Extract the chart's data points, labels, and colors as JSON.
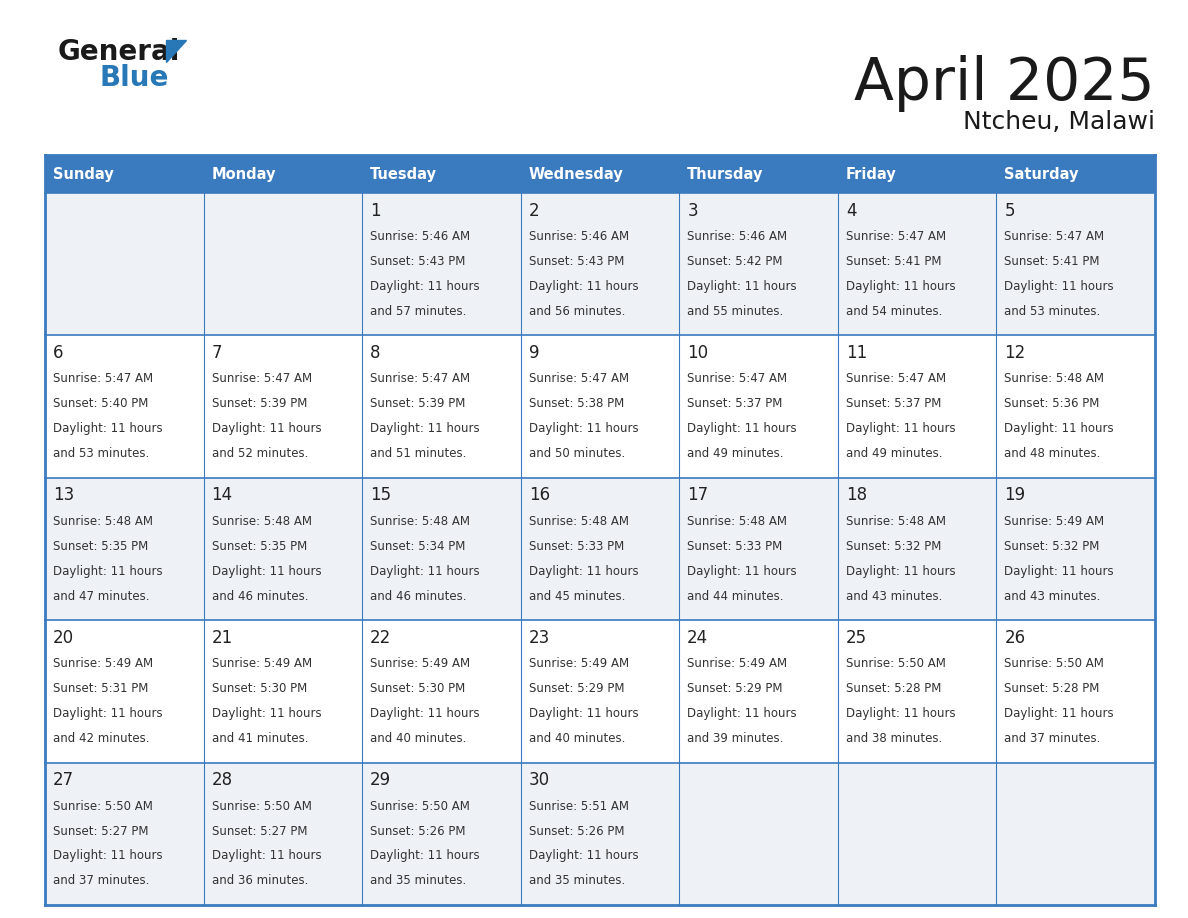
{
  "title": "April 2025",
  "subtitle": "Ntcheu, Malawi",
  "header_bg": "#3a7abf",
  "header_text_color": "#ffffff",
  "cell_bg_odd": "#eef2f7",
  "cell_bg_even": "#ffffff",
  "grid_line_color": "#3a7abf",
  "text_color": "#333333",
  "day_num_color": "#222222",
  "day_headers": [
    "Sunday",
    "Monday",
    "Tuesday",
    "Wednesday",
    "Thursday",
    "Friday",
    "Saturday"
  ],
  "days": [
    {
      "day": 1,
      "col": 2,
      "row": 0,
      "sunrise": "5:46 AM",
      "sunset": "5:43 PM",
      "daylight_min": "57"
    },
    {
      "day": 2,
      "col": 3,
      "row": 0,
      "sunrise": "5:46 AM",
      "sunset": "5:43 PM",
      "daylight_min": "56"
    },
    {
      "day": 3,
      "col": 4,
      "row": 0,
      "sunrise": "5:46 AM",
      "sunset": "5:42 PM",
      "daylight_min": "55"
    },
    {
      "day": 4,
      "col": 5,
      "row": 0,
      "sunrise": "5:47 AM",
      "sunset": "5:41 PM",
      "daylight_min": "54"
    },
    {
      "day": 5,
      "col": 6,
      "row": 0,
      "sunrise": "5:47 AM",
      "sunset": "5:41 PM",
      "daylight_min": "53"
    },
    {
      "day": 6,
      "col": 0,
      "row": 1,
      "sunrise": "5:47 AM",
      "sunset": "5:40 PM",
      "daylight_min": "53"
    },
    {
      "day": 7,
      "col": 1,
      "row": 1,
      "sunrise": "5:47 AM",
      "sunset": "5:39 PM",
      "daylight_min": "52"
    },
    {
      "day": 8,
      "col": 2,
      "row": 1,
      "sunrise": "5:47 AM",
      "sunset": "5:39 PM",
      "daylight_min": "51"
    },
    {
      "day": 9,
      "col": 3,
      "row": 1,
      "sunrise": "5:47 AM",
      "sunset": "5:38 PM",
      "daylight_min": "50"
    },
    {
      "day": 10,
      "col": 4,
      "row": 1,
      "sunrise": "5:47 AM",
      "sunset": "5:37 PM",
      "daylight_min": "49"
    },
    {
      "day": 11,
      "col": 5,
      "row": 1,
      "sunrise": "5:47 AM",
      "sunset": "5:37 PM",
      "daylight_min": "49"
    },
    {
      "day": 12,
      "col": 6,
      "row": 1,
      "sunrise": "5:48 AM",
      "sunset": "5:36 PM",
      "daylight_min": "48"
    },
    {
      "day": 13,
      "col": 0,
      "row": 2,
      "sunrise": "5:48 AM",
      "sunset": "5:35 PM",
      "daylight_min": "47"
    },
    {
      "day": 14,
      "col": 1,
      "row": 2,
      "sunrise": "5:48 AM",
      "sunset": "5:35 PM",
      "daylight_min": "46"
    },
    {
      "day": 15,
      "col": 2,
      "row": 2,
      "sunrise": "5:48 AM",
      "sunset": "5:34 PM",
      "daylight_min": "46"
    },
    {
      "day": 16,
      "col": 3,
      "row": 2,
      "sunrise": "5:48 AM",
      "sunset": "5:33 PM",
      "daylight_min": "45"
    },
    {
      "day": 17,
      "col": 4,
      "row": 2,
      "sunrise": "5:48 AM",
      "sunset": "5:33 PM",
      "daylight_min": "44"
    },
    {
      "day": 18,
      "col": 5,
      "row": 2,
      "sunrise": "5:48 AM",
      "sunset": "5:32 PM",
      "daylight_min": "43"
    },
    {
      "day": 19,
      "col": 6,
      "row": 2,
      "sunrise": "5:49 AM",
      "sunset": "5:32 PM",
      "daylight_min": "43"
    },
    {
      "day": 20,
      "col": 0,
      "row": 3,
      "sunrise": "5:49 AM",
      "sunset": "5:31 PM",
      "daylight_min": "42"
    },
    {
      "day": 21,
      "col": 1,
      "row": 3,
      "sunrise": "5:49 AM",
      "sunset": "5:30 PM",
      "daylight_min": "41"
    },
    {
      "day": 22,
      "col": 2,
      "row": 3,
      "sunrise": "5:49 AM",
      "sunset": "5:30 PM",
      "daylight_min": "40"
    },
    {
      "day": 23,
      "col": 3,
      "row": 3,
      "sunrise": "5:49 AM",
      "sunset": "5:29 PM",
      "daylight_min": "40"
    },
    {
      "day": 24,
      "col": 4,
      "row": 3,
      "sunrise": "5:49 AM",
      "sunset": "5:29 PM",
      "daylight_min": "39"
    },
    {
      "day": 25,
      "col": 5,
      "row": 3,
      "sunrise": "5:50 AM",
      "sunset": "5:28 PM",
      "daylight_min": "38"
    },
    {
      "day": 26,
      "col": 6,
      "row": 3,
      "sunrise": "5:50 AM",
      "sunset": "5:28 PM",
      "daylight_min": "37"
    },
    {
      "day": 27,
      "col": 0,
      "row": 4,
      "sunrise": "5:50 AM",
      "sunset": "5:27 PM",
      "daylight_min": "37"
    },
    {
      "day": 28,
      "col": 1,
      "row": 4,
      "sunrise": "5:50 AM",
      "sunset": "5:27 PM",
      "daylight_min": "36"
    },
    {
      "day": 29,
      "col": 2,
      "row": 4,
      "sunrise": "5:50 AM",
      "sunset": "5:26 PM",
      "daylight_min": "35"
    },
    {
      "day": 30,
      "col": 3,
      "row": 4,
      "sunrise": "5:51 AM",
      "sunset": "5:26 PM",
      "daylight_min": "35"
    }
  ],
  "logo_general_color": "#1a1a1a",
  "logo_blue_color": "#2878b8",
  "logo_triangle_color": "#2878b8",
  "title_color": "#1a1a1a",
  "subtitle_color": "#1a1a1a"
}
